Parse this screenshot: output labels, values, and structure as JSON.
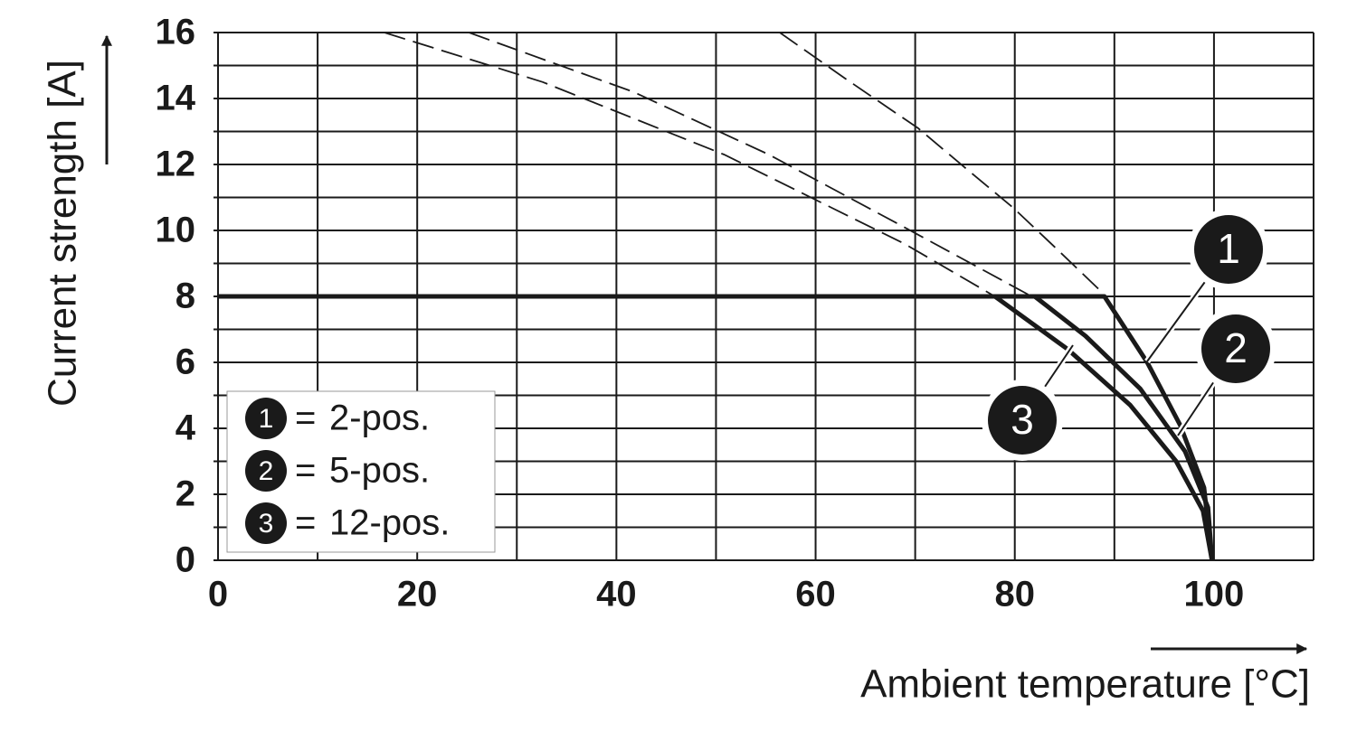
{
  "chart_data": {
    "type": "line",
    "xlabel": "Ambient temperature [°C]",
    "ylabel": "Current strength [A]",
    "xlim": [
      0,
      110
    ],
    "ylim": [
      0,
      16
    ],
    "xticks": [
      0,
      20,
      40,
      60,
      80,
      100
    ],
    "yticks": [
      0,
      2,
      4,
      6,
      8,
      10,
      12,
      14,
      16
    ],
    "xgrid": [
      0,
      10,
      20,
      30,
      40,
      50,
      60,
      70,
      80,
      90,
      100,
      110
    ],
    "ygrid": [
      0,
      1,
      2,
      3,
      4,
      5,
      6,
      7,
      8,
      9,
      10,
      11,
      12,
      13,
      14,
      15,
      16
    ],
    "grid": true,
    "legend_separator": "=",
    "legend": "lower left",
    "series": [
      {
        "name": "2-pos.",
        "label": "1",
        "color": "#1a1a1a",
        "x": [
          0,
          89,
          93.3,
          96.6,
          99,
          99.8
        ],
        "values": [
          8,
          8,
          6,
          4.1,
          2.2,
          0
        ],
        "dashed_x": [
          56.4,
          63,
          70.3,
          75,
          79.8,
          84,
          88.5
        ],
        "dashed_values": [
          16,
          14.6,
          13.1,
          11.9,
          10.7,
          9.5,
          8.2
        ]
      },
      {
        "name": "5-pos.",
        "label": "2",
        "color": "#1a1a1a",
        "x": [
          0,
          82,
          87.1,
          92.6,
          97.1,
          99.4,
          99.8
        ],
        "values": [
          8,
          8,
          6.8,
          5.2,
          3.3,
          1.6,
          0
        ],
        "dashed_x": [
          25.2,
          41.7,
          55.3,
          68.9,
          81.7
        ],
        "dashed_values": [
          16,
          14.2,
          12.3,
          10.1,
          8
        ]
      },
      {
        "name": "12-pos.",
        "label": "3",
        "color": "#1a1a1a",
        "x": [
          0,
          78,
          85.3,
          91.6,
          96.2,
          98.9,
          99.8
        ],
        "values": [
          8,
          8,
          6.4,
          4.7,
          3,
          1.5,
          0
        ],
        "dashed_x": [
          16.7,
          32.6,
          50.8,
          68.9,
          78
        ],
        "dashed_values": [
          16,
          14.5,
          12.3,
          9.6,
          8
        ]
      }
    ]
  }
}
